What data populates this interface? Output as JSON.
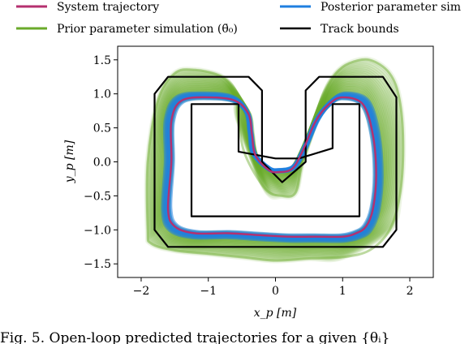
{
  "chart_data": {
    "type": "line",
    "xlabel": "x_p [m]",
    "ylabel": "y_p [m]",
    "xlim": [
      -2.35,
      2.35
    ],
    "ylim": [
      -1.7,
      1.7
    ],
    "xticks": [
      -2,
      -1,
      0,
      1,
      2
    ],
    "yticks": [
      -1.5,
      -1.0,
      -0.5,
      0.0,
      0.5,
      1.0,
      1.5
    ],
    "xtick_labels": [
      "−2",
      "−1",
      "0",
      "1",
      "2"
    ],
    "ytick_labels": [
      "−1.5",
      "−1.0",
      "−0.5",
      "0.0",
      "0.5",
      "1.0",
      "1.5"
    ],
    "grid": false,
    "legend_position": "top",
    "colors": {
      "system": "#b5306f",
      "prior": "#6aaa2a",
      "posterior": "#1f7fe0",
      "track": "#000000"
    },
    "track_bounds": {
      "outer": [
        [
          -1.6,
          -1.25
        ],
        [
          1.6,
          -1.25
        ],
        [
          1.8,
          -1.0
        ],
        [
          1.8,
          0.95
        ],
        [
          1.6,
          1.25
        ],
        [
          0.65,
          1.25
        ],
        [
          0.45,
          1.05
        ],
        [
          0.45,
          0.0
        ],
        [
          0.1,
          -0.3
        ],
        [
          -0.2,
          0.0
        ],
        [
          -0.2,
          1.05
        ],
        [
          -0.4,
          1.25
        ],
        [
          -1.6,
          1.25
        ],
        [
          -1.8,
          1.0
        ],
        [
          -1.8,
          -1.0
        ]
      ],
      "inner": [
        [
          -1.25,
          -0.8
        ],
        [
          1.25,
          -0.8
        ],
        [
          1.25,
          0.85
        ],
        [
          0.85,
          0.85
        ],
        [
          0.85,
          0.2
        ],
        [
          0.35,
          0.05
        ],
        [
          0.0,
          0.05
        ],
        [
          -0.55,
          0.15
        ],
        [
          -0.55,
          0.85
        ],
        [
          -1.25,
          0.85
        ]
      ]
    },
    "series": [
      {
        "name": "System trajectory",
        "x": [
          -1.6,
          -1.55,
          -1.55,
          -1.4,
          -1.0,
          -0.6,
          -0.4,
          -0.35,
          -0.3,
          -0.1,
          0.05,
          0.25,
          0.4,
          0.6,
          0.8,
          1.0,
          1.3,
          1.45,
          1.5,
          1.45,
          1.35,
          1.2,
          1.0,
          0.6,
          0.2,
          -0.2,
          -0.7,
          -1.2,
          -1.5,
          -1.6
        ],
        "y": [
          -0.7,
          0.0,
          0.6,
          0.9,
          0.95,
          0.9,
          0.7,
          0.4,
          0.1,
          -0.12,
          -0.15,
          -0.1,
          0.15,
          0.6,
          0.85,
          0.95,
          0.85,
          0.4,
          -0.2,
          -0.7,
          -0.95,
          -1.05,
          -1.1,
          -1.1,
          -1.1,
          -1.08,
          -1.05,
          -1.05,
          -0.95,
          -0.7
        ]
      },
      {
        "name": "Prior parameter simulation (θ̄₀)",
        "x": [
          -1.9,
          -1.9,
          -1.75,
          -1.5,
          -1.2,
          -0.8,
          -0.6,
          -0.55,
          -0.45,
          -0.15,
          0.1,
          0.3,
          0.4,
          0.6,
          0.75,
          0.9,
          1.1,
          1.4,
          1.7,
          1.85,
          1.9,
          1.85,
          1.7,
          1.4,
          1.0,
          0.5,
          0.0,
          -0.5,
          -1.0,
          -1.5,
          -1.85,
          -1.9
        ],
        "y": [
          -1.0,
          0.0,
          0.9,
          1.3,
          1.35,
          1.25,
          1.0,
          0.6,
          0.1,
          -0.4,
          -0.5,
          -0.45,
          0.0,
          0.6,
          1.05,
          1.3,
          1.45,
          1.5,
          1.3,
          0.9,
          0.2,
          -0.5,
          -1.0,
          -1.3,
          -1.4,
          -1.42,
          -1.45,
          -1.4,
          -1.35,
          -1.3,
          -1.2,
          -1.0
        ]
      },
      {
        "name": "Posterior parameter sim",
        "x": [
          -1.62,
          -1.58,
          -1.58,
          -1.42,
          -1.0,
          -0.62,
          -0.42,
          -0.37,
          -0.32,
          -0.1,
          0.05,
          0.27,
          0.42,
          0.62,
          0.82,
          1.02,
          1.33,
          1.48,
          1.53,
          1.48,
          1.37,
          1.22,
          1.0,
          0.6,
          0.2,
          -0.2,
          -0.7,
          -1.2,
          -1.52,
          -1.62
        ],
        "y": [
          -0.7,
          0.0,
          0.6,
          0.92,
          0.97,
          0.92,
          0.72,
          0.42,
          0.12,
          -0.1,
          -0.13,
          -0.08,
          0.17,
          0.62,
          0.87,
          0.97,
          0.87,
          0.42,
          -0.2,
          -0.7,
          -0.97,
          -1.07,
          -1.12,
          -1.12,
          -1.12,
          -1.1,
          -1.07,
          -1.07,
          -0.97,
          -0.7
        ]
      }
    ],
    "legend": {
      "items": [
        {
          "key": "system",
          "label": "System trajectory"
        },
        {
          "key": "posterior",
          "label": "Posterior parameter sim"
        },
        {
          "key": "prior",
          "label": "Prior parameter simulation (θ̄₀)"
        },
        {
          "key": "track",
          "label": "Track bounds"
        }
      ]
    }
  },
  "caption": {
    "text": "Fig. 5. Open-loop predicted trajectories for a given {θᵢ}"
  }
}
